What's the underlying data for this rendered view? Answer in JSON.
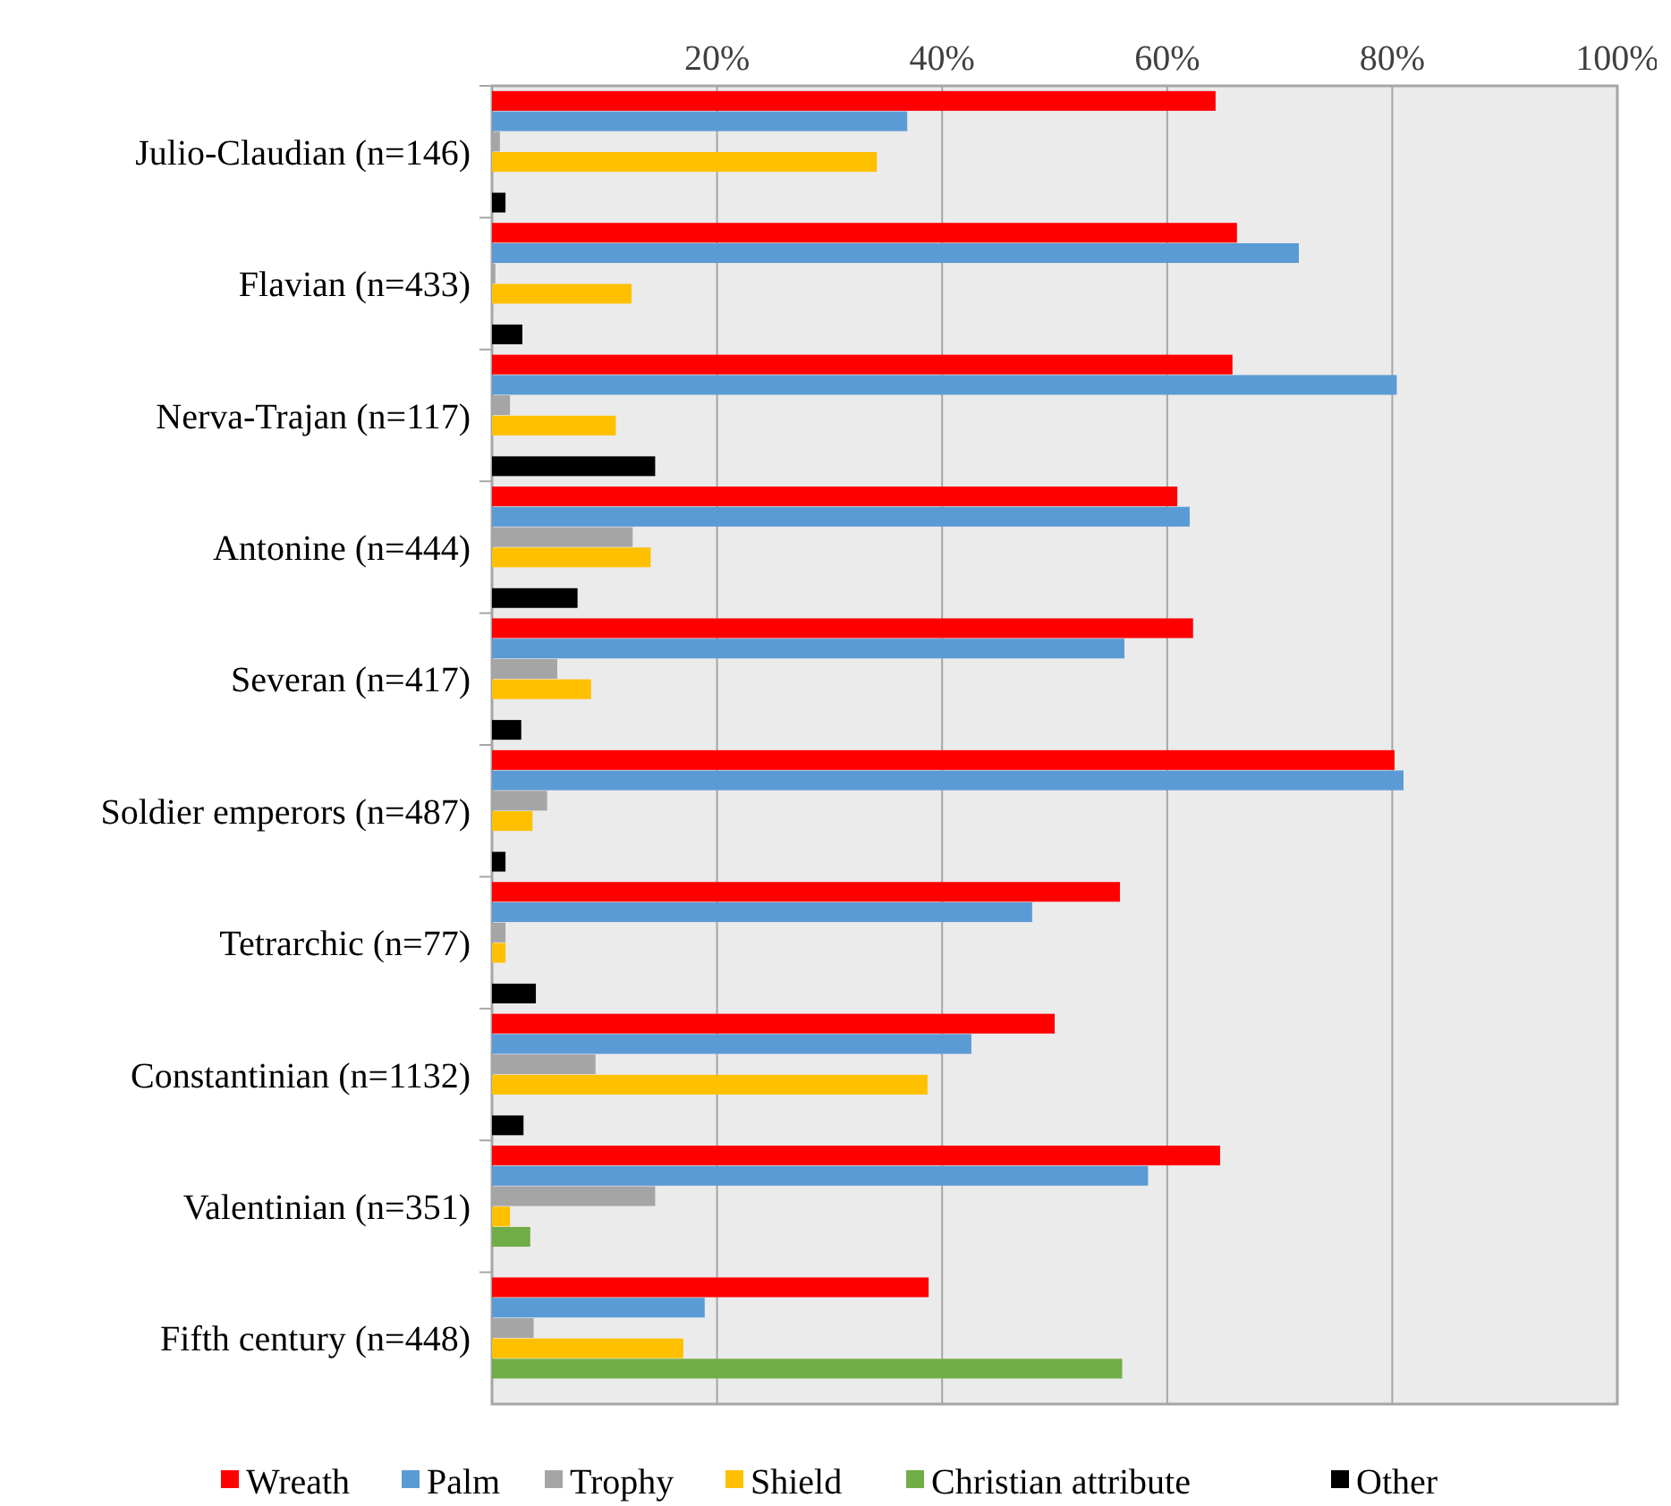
{
  "chart_data": {
    "type": "bar",
    "orientation": "horizontal",
    "categories": [
      "Julio-Claudian (n=146)",
      "Flavian (n=433)",
      "Nerva-Trajan (n=117)",
      "Antonine (n=444)",
      "Severan (n=417)",
      "Soldier emperors (n=487)",
      "Tetrarchic (n=77)",
      "Constantinian (n=1132)",
      "Valentinian (n=351)",
      "Fifth century (n=448)"
    ],
    "series": [
      {
        "name": "Wreath",
        "color": "#ff0000",
        "values": [
          64.3,
          66.2,
          65.8,
          60.9,
          62.3,
          80.2,
          55.8,
          50.0,
          64.7,
          38.8
        ]
      },
      {
        "name": "Palm",
        "color": "#5b9bd5",
        "values": [
          36.9,
          71.7,
          80.4,
          62.0,
          56.2,
          81.0,
          48.0,
          42.6,
          58.3,
          18.9
        ]
      },
      {
        "name": "Trophy",
        "color": "#a5a5a5",
        "values": [
          0.7,
          0.3,
          1.6,
          12.5,
          5.8,
          4.9,
          1.2,
          9.2,
          14.5,
          3.7
        ]
      },
      {
        "name": "Shield",
        "color": "#ffc000",
        "values": [
          34.2,
          12.4,
          11.0,
          14.1,
          8.8,
          3.6,
          1.2,
          38.7,
          1.6,
          17.0
        ]
      },
      {
        "name": "Christian attribute",
        "color": "#70ad47",
        "values": [
          0,
          0,
          0,
          0,
          0,
          0,
          0,
          0,
          3.4,
          56.0
        ]
      },
      {
        "name": "Other",
        "color": "#000000",
        "values": [
          1.2,
          2.7,
          14.5,
          7.6,
          2.6,
          1.2,
          3.9,
          2.8,
          0,
          0
        ]
      }
    ],
    "xlim": [
      0,
      100
    ],
    "xticks": [
      {
        "value": 0,
        "label": null
      },
      {
        "value": 20,
        "label": "20%"
      },
      {
        "value": 40,
        "label": "40%"
      },
      {
        "value": 60,
        "label": "60%"
      },
      {
        "value": 80,
        "label": "80%"
      },
      {
        "value": 100,
        "label": "100%"
      }
    ],
    "grid": "x",
    "legend": "bottom"
  }
}
